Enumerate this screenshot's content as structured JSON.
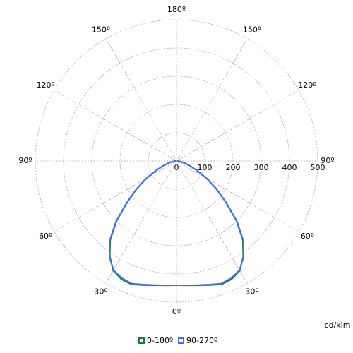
{
  "chart_data": {
    "type": "polar",
    "unit_label": "cd/klm",
    "x": [
      0,
      5,
      10,
      15,
      20,
      25,
      30,
      35,
      40,
      45,
      50,
      55,
      60,
      65,
      70,
      75,
      80,
      85,
      90
    ],
    "series": [
      {
        "name": "0-180º",
        "color": "#17803a",
        "values": [
          440,
          442,
          447,
          455,
          465,
          462,
          448,
          412,
          365,
          300,
          228,
          172,
          122,
          80,
          50,
          30,
          15,
          8,
          3
        ]
      },
      {
        "name": "90-270º",
        "color": "#3b6fe3",
        "values": [
          440,
          442,
          446,
          453,
          462,
          458,
          446,
          414,
          368,
          303,
          230,
          173,
          123,
          81,
          51,
          31,
          16,
          8,
          3
        ]
      }
    ],
    "rlim": [
      0,
      500
    ],
    "rticks": [
      0,
      100,
      200,
      300,
      400,
      500
    ],
    "thetaticks": [
      {
        "value": 0,
        "label": "0º"
      },
      {
        "value": 30,
        "label": "30º"
      },
      {
        "value": 60,
        "label": "60º"
      },
      {
        "value": 90,
        "label": "90º"
      },
      {
        "value": 120,
        "label": "120º"
      },
      {
        "value": 150,
        "label": "150º"
      },
      {
        "value": 180,
        "label": "180º"
      }
    ],
    "grid": true
  }
}
